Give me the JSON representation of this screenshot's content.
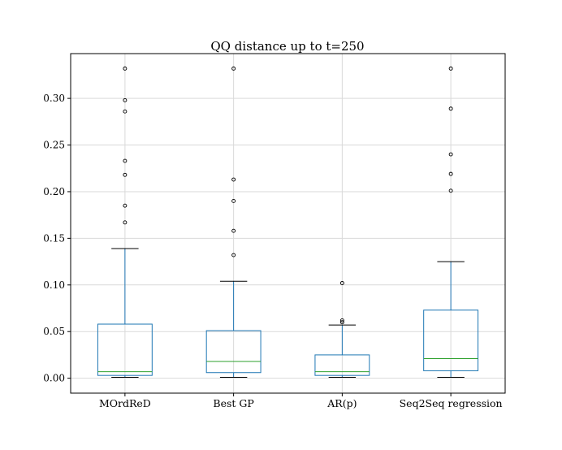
{
  "chart_data": {
    "type": "box",
    "title": "QQ distance up to t=250",
    "xlabel": "",
    "ylabel": "",
    "ylim": [
      -0.016,
      0.348
    ],
    "yticks": [
      0.0,
      0.05,
      0.1,
      0.15,
      0.2,
      0.25,
      0.3
    ],
    "ytick_labels": [
      "0.00",
      "0.05",
      "0.10",
      "0.15",
      "0.20",
      "0.25",
      "0.30"
    ],
    "grid": true,
    "categories": [
      "MOrdReD",
      "Best GP",
      "AR(p)",
      "Seq2Seq regression"
    ],
    "boxes": [
      {
        "whisker_low": 0.001,
        "q1": 0.003,
        "median": 0.007,
        "q3": 0.058,
        "whisker_high": 0.139,
        "outliers": [
          0.167,
          0.185,
          0.218,
          0.233,
          0.286,
          0.298,
          0.332
        ]
      },
      {
        "whisker_low": 0.001,
        "q1": 0.006,
        "median": 0.018,
        "q3": 0.051,
        "whisker_high": 0.104,
        "outliers": [
          0.132,
          0.158,
          0.19,
          0.213,
          0.332
        ]
      },
      {
        "whisker_low": 0.001,
        "q1": 0.003,
        "median": 0.007,
        "q3": 0.025,
        "whisker_high": 0.057,
        "outliers": [
          0.06,
          0.062,
          0.102
        ]
      },
      {
        "whisker_low": 0.001,
        "q1": 0.008,
        "median": 0.021,
        "q3": 0.073,
        "whisker_high": 0.125,
        "outliers": [
          0.201,
          0.219,
          0.24,
          0.289,
          0.332
        ]
      }
    ],
    "colors": {
      "box": "#1f77b4",
      "median": "#2ca02c",
      "whisker_cap": "#000000",
      "grid": "#d9d9d9"
    }
  }
}
